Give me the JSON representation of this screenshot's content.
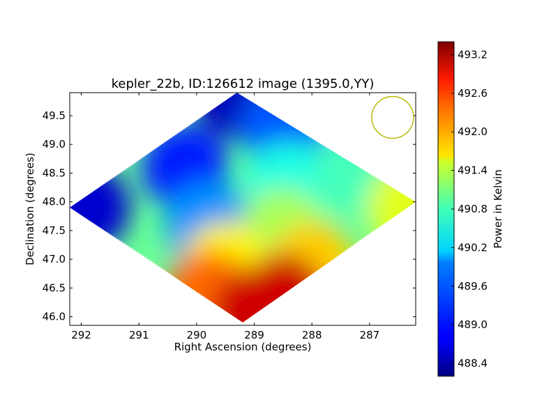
{
  "chart_data": {
    "type": "heatmap",
    "title": "kepler_22b, ID:126612 image (1395.0,YY)",
    "xlabel": "Right Ascension (degrees)",
    "ylabel": "Declination (degrees)",
    "xlim": [
      292.2,
      286.2
    ],
    "ylim": [
      45.85,
      49.9
    ],
    "x_ticks": [
      {
        "value": 292,
        "label": "292"
      },
      {
        "value": 291,
        "label": "291"
      },
      {
        "value": 290,
        "label": "290"
      },
      {
        "value": 289,
        "label": "289"
      },
      {
        "value": 288,
        "label": "288"
      },
      {
        "value": 287,
        "label": "287"
      }
    ],
    "y_ticks": [
      {
        "value": 46.0,
        "label": "46.0"
      },
      {
        "value": 46.5,
        "label": "46.5"
      },
      {
        "value": 47.0,
        "label": "47.0"
      },
      {
        "value": 47.5,
        "label": "47.5"
      },
      {
        "value": 48.0,
        "label": "48.0"
      },
      {
        "value": 48.5,
        "label": "48.5"
      },
      {
        "value": 49.0,
        "label": "49.0"
      },
      {
        "value": 49.5,
        "label": "49.5"
      }
    ],
    "colorbar": {
      "label": "Power in Kelvin",
      "colormap": "jet",
      "range": [
        488.2,
        493.4
      ],
      "ticks": [
        {
          "value": 488.4,
          "label": "488.4"
        },
        {
          "value": 489.0,
          "label": "489.0"
        },
        {
          "value": 489.6,
          "label": "489.6"
        },
        {
          "value": 490.2,
          "label": "490.2"
        },
        {
          "value": 490.8,
          "label": "490.8"
        },
        {
          "value": 491.4,
          "label": "491.4"
        },
        {
          "value": 492.0,
          "label": "492.0"
        },
        {
          "value": 492.6,
          "label": "492.6"
        },
        {
          "value": 493.2,
          "label": "493.2"
        }
      ]
    },
    "footprint_corners": [
      {
        "ra": 289.3,
        "dec": 49.9
      },
      {
        "ra": 286.2,
        "dec": 48.0
      },
      {
        "ra": 289.2,
        "dec": 45.9
      },
      {
        "ra": 292.2,
        "dec": 47.9
      }
    ],
    "value_field_samples": [
      {
        "ra": 289.3,
        "dec": 49.85,
        "value": 488.5
      },
      {
        "ra": 291.9,
        "dec": 47.9,
        "value": 488.6
      },
      {
        "ra": 290.2,
        "dec": 48.6,
        "value": 489.0
      },
      {
        "ra": 288.5,
        "dec": 49.3,
        "value": 489.3
      },
      {
        "ra": 289.8,
        "dec": 47.6,
        "value": 489.6
      },
      {
        "ra": 288.4,
        "dec": 48.3,
        "value": 490.3
      },
      {
        "ra": 287.2,
        "dec": 48.5,
        "value": 490.5
      },
      {
        "ra": 286.3,
        "dec": 47.9,
        "value": 491.3
      },
      {
        "ra": 288.5,
        "dec": 47.5,
        "value": 491.0
      },
      {
        "ra": 289.5,
        "dec": 46.9,
        "value": 491.5
      },
      {
        "ra": 288.0,
        "dec": 46.9,
        "value": 491.7
      },
      {
        "ra": 289.8,
        "dec": 46.4,
        "value": 492.2
      },
      {
        "ra": 289.0,
        "dec": 46.1,
        "value": 493.0
      },
      {
        "ra": 288.5,
        "dec": 46.35,
        "value": 493.0
      }
    ],
    "beam_marker": {
      "ra": 286.6,
      "dec": 49.47,
      "color": "#b5b500"
    },
    "grid": false,
    "legend": "none"
  }
}
